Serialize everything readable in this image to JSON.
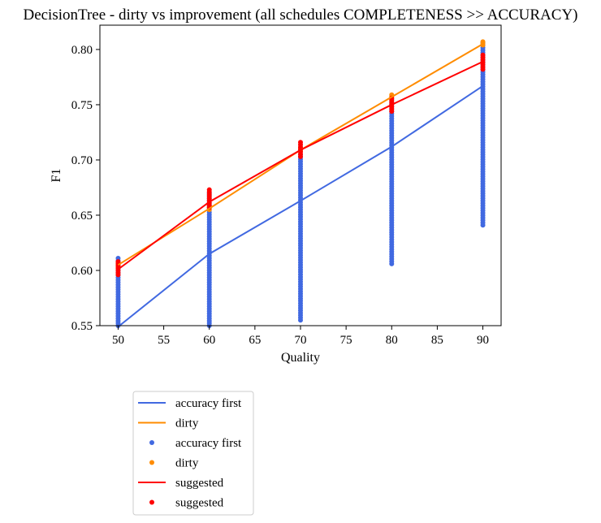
{
  "chart_data": {
    "type": "line",
    "title": "DecisionTree - dirty vs improvement (all schedules COMPLETENESS >> ACCURACY)",
    "xlabel": "Quality",
    "ylabel": "F1",
    "xlim": [
      48,
      92
    ],
    "ylim": [
      0.55,
      0.822
    ],
    "xticks": [
      50,
      55,
      60,
      65,
      70,
      75,
      80,
      85,
      90
    ],
    "yticks": [
      0.55,
      0.6,
      0.65,
      0.7,
      0.75,
      0.8
    ],
    "ytick_labels": [
      "0.55",
      "0.60",
      "0.65",
      "0.70",
      "0.75",
      "0.80"
    ],
    "x": [
      50,
      60,
      70,
      80,
      90
    ],
    "lines": [
      {
        "name": "accuracy first",
        "color": "#4169e1",
        "values": [
          0.549,
          0.615,
          0.663,
          0.712,
          0.767
        ]
      },
      {
        "name": "dirty",
        "color": "#ff8c00",
        "values": [
          0.605,
          0.656,
          0.709,
          0.757,
          0.805
        ]
      },
      {
        "name": "suggested",
        "color": "#ff0000",
        "values": [
          0.601,
          0.662,
          0.709,
          0.75,
          0.789
        ]
      }
    ],
    "scatter": [
      {
        "name": "accuracy first",
        "color": "#4169e1",
        "ranges": [
          [
            0.55,
            0.611
          ],
          [
            0.55,
            0.67
          ],
          [
            0.555,
            0.705
          ],
          [
            0.606,
            0.755
          ],
          [
            0.641,
            0.806
          ]
        ]
      },
      {
        "name": "dirty",
        "color": "#ff8c00",
        "ranges": [
          [
            0.603,
            0.607
          ],
          [
            0.655,
            0.658
          ],
          [
            0.708,
            0.711
          ],
          [
            0.756,
            0.759
          ],
          [
            0.804,
            0.807
          ]
        ]
      },
      {
        "name": "suggested",
        "color": "#ff0000",
        "ranges": [
          [
            0.596,
            0.608
          ],
          [
            0.657,
            0.673
          ],
          [
            0.703,
            0.716
          ],
          [
            0.744,
            0.756
          ],
          [
            0.782,
            0.795
          ]
        ]
      }
    ],
    "legend": {
      "placement": "below-left",
      "entries": [
        {
          "label": "accuracy first",
          "kind": "line",
          "color": "#4169e1"
        },
        {
          "label": "dirty",
          "kind": "line",
          "color": "#ff8c00"
        },
        {
          "label": "accuracy first",
          "kind": "point",
          "color": "#4169e1"
        },
        {
          "label": "dirty",
          "kind": "point",
          "color": "#ff8c00"
        },
        {
          "label": "suggested",
          "kind": "line",
          "color": "#ff0000"
        },
        {
          "label": "suggested",
          "kind": "point",
          "color": "#ff0000"
        }
      ]
    },
    "grid": false
  }
}
